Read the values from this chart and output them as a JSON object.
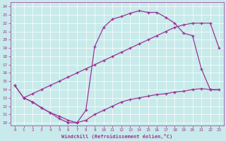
{
  "bg_color": "#c8eaea",
  "line_color": "#993399",
  "xlabel": "Windchill (Refroidissement éolien,°C)",
  "xlim": [
    -0.5,
    23.5
  ],
  "ylim": [
    9.7,
    24.5
  ],
  "xticks": [
    0,
    1,
    2,
    3,
    4,
    5,
    6,
    7,
    8,
    9,
    10,
    11,
    12,
    13,
    14,
    15,
    16,
    17,
    18,
    19,
    20,
    21,
    22,
    23
  ],
  "yticks": [
    10,
    11,
    12,
    13,
    14,
    15,
    16,
    17,
    18,
    19,
    20,
    21,
    22,
    23,
    24
  ],
  "curve_top_x": [
    0,
    1,
    2,
    3,
    4,
    5,
    6,
    7,
    8,
    9,
    10,
    11,
    12,
    13,
    14,
    15,
    16,
    17,
    18,
    19,
    20,
    21,
    22
  ],
  "curve_top_y": [
    14.5,
    13.0,
    12.5,
    11.8,
    11.2,
    10.5,
    10.0,
    10.0,
    11.5,
    19.2,
    21.5,
    22.5,
    22.8,
    23.2,
    23.5,
    23.3,
    23.3,
    22.7,
    22.0,
    20.8,
    20.5,
    16.5,
    14.0
  ],
  "curve_mid_x": [
    0,
    1,
    2,
    3,
    4,
    5,
    6,
    7,
    8,
    9,
    10,
    11,
    12,
    13,
    14,
    15,
    16,
    17,
    18,
    19,
    20,
    21,
    22,
    23
  ],
  "curve_mid_y": [
    14.5,
    13.0,
    13.5,
    14.0,
    14.5,
    15.0,
    15.5,
    16.0,
    16.5,
    17.0,
    17.5,
    18.0,
    18.5,
    19.0,
    19.5,
    20.0,
    20.5,
    21.0,
    21.5,
    21.8,
    22.0,
    22.0,
    22.0,
    19.0
  ],
  "curve_bot_x": [
    1,
    2,
    3,
    4,
    5,
    6,
    7,
    8,
    9,
    10,
    11,
    12,
    13,
    14,
    15,
    16,
    17,
    18,
    19,
    20,
    21,
    22,
    23
  ],
  "curve_bot_y": [
    13.0,
    12.5,
    11.8,
    11.2,
    10.8,
    10.3,
    10.0,
    10.3,
    11.0,
    11.5,
    12.0,
    12.5,
    12.8,
    13.0,
    13.2,
    13.4,
    13.5,
    13.7,
    13.8,
    14.0,
    14.1,
    14.0,
    14.0
  ]
}
